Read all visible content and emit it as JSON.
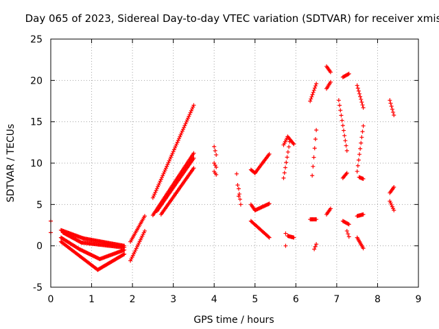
{
  "chart_data": {
    "type": "scatter",
    "title": "Day 065 of 2023, Sidereal Day-to-day VTEC variation (SDTVAR) for receiver xmis",
    "xlabel": "GPS time / hours",
    "ylabel": "SDTVAR / TECUs",
    "xlim": [
      0,
      9
    ],
    "ylim": [
      -5,
      25
    ],
    "xticks": [
      "0",
      "1",
      "2",
      "3",
      "4",
      "5",
      "6",
      "7",
      "8",
      "9"
    ],
    "yticks": [
      "-5",
      "0",
      "5",
      "10",
      "15",
      "20",
      "25"
    ],
    "grid": true,
    "marker": "+",
    "color": "#ff0000",
    "segments": [
      {
        "x0": 0.0,
        "x1": 0.0,
        "y0": 3.0,
        "y1": 1.6
      },
      {
        "x0": 0.25,
        "x1": 0.8,
        "y0": 1.9,
        "y1": 0.9
      },
      {
        "x0": 0.8,
        "x1": 1.8,
        "y0": 0.9,
        "y1": 0.0
      },
      {
        "x0": 0.25,
        "x1": 0.7,
        "y0": 1.0,
        "y1": -0.4
      },
      {
        "x0": 0.7,
        "x1": 1.2,
        "y0": -0.4,
        "y1": -1.6
      },
      {
        "x0": 1.2,
        "x1": 1.8,
        "y0": -1.6,
        "y1": -0.5
      },
      {
        "x0": 0.25,
        "x1": 0.7,
        "y0": 0.5,
        "y1": -1.2
      },
      {
        "x0": 0.7,
        "x1": 1.15,
        "y0": -1.2,
        "y1": -2.9
      },
      {
        "x0": 1.15,
        "x1": 1.8,
        "y0": -2.9,
        "y1": -1.0
      },
      {
        "x0": 0.3,
        "x1": 0.75,
        "y0": 1.6,
        "y1": 0.4
      },
      {
        "x0": 0.75,
        "x1": 1.8,
        "y0": 0.4,
        "y1": -0.2
      },
      {
        "x0": 1.95,
        "x1": 2.3,
        "y0": 0.5,
        "y1": 3.6
      },
      {
        "x0": 1.95,
        "x1": 2.3,
        "y0": -1.8,
        "y1": 1.8
      },
      {
        "x0": 2.5,
        "x1": 3.5,
        "y0": 5.8,
        "y1": 17.0
      },
      {
        "x0": 2.5,
        "x1": 3.5,
        "y0": 3.7,
        "y1": 11.2
      },
      {
        "x0": 2.6,
        "x1": 3.5,
        "y0": 4.2,
        "y1": 10.6
      },
      {
        "x0": 2.7,
        "x1": 3.5,
        "y0": 3.8,
        "y1": 9.4
      },
      {
        "x0": 4.0,
        "x1": 4.05,
        "y0": 12.0,
        "y1": 11.0
      },
      {
        "x0": 4.0,
        "x1": 4.05,
        "y0": 10.0,
        "y1": 9.5
      },
      {
        "x0": 4.0,
        "x1": 4.05,
        "y0": 9.0,
        "y1": 8.6
      },
      {
        "x0": 4.55,
        "x1": 4.6,
        "y0": 8.7,
        "y1": 6.0
      },
      {
        "x0": 4.6,
        "x1": 4.65,
        "y0": 6.9,
        "y1": 5.0
      },
      {
        "x0": 4.9,
        "x1": 5.0,
        "y0": 9.2,
        "y1": 8.8
      },
      {
        "x0": 5.0,
        "x1": 5.35,
        "y0": 8.8,
        "y1": 11.1
      },
      {
        "x0": 4.9,
        "x1": 5.0,
        "y0": 5.0,
        "y1": 4.3
      },
      {
        "x0": 5.0,
        "x1": 5.35,
        "y0": 4.3,
        "y1": 5.1
      },
      {
        "x0": 4.9,
        "x1": 5.35,
        "y0": 3.0,
        "y1": 1.0
      },
      {
        "x0": 5.7,
        "x1": 5.85,
        "y0": 8.2,
        "y1": 12.6
      },
      {
        "x0": 5.7,
        "x1": 5.8,
        "y0": 12.2,
        "y1": 13.2
      },
      {
        "x0": 5.8,
        "x1": 5.95,
        "y0": 13.2,
        "y1": 12.3
      },
      {
        "x0": 5.75,
        "x1": 5.75,
        "y0": 0.0,
        "y1": 1.5
      },
      {
        "x0": 5.8,
        "x1": 5.95,
        "y0": 1.2,
        "y1": 1.0
      },
      {
        "x0": 6.35,
        "x1": 6.5,
        "y0": 17.5,
        "y1": 19.6
      },
      {
        "x0": 6.4,
        "x1": 6.5,
        "y0": 8.5,
        "y1": 14.0
      },
      {
        "x0": 6.35,
        "x1": 6.5,
        "y0": 3.2,
        "y1": 3.2
      },
      {
        "x0": 6.45,
        "x1": 6.5,
        "y0": -0.4,
        "y1": 0.2
      },
      {
        "x0": 6.75,
        "x1": 6.85,
        "y0": 21.7,
        "y1": 21.0
      },
      {
        "x0": 6.75,
        "x1": 6.85,
        "y0": 19.0,
        "y1": 19.8
      },
      {
        "x0": 6.75,
        "x1": 6.85,
        "y0": 3.8,
        "y1": 4.5
      },
      {
        "x0": 7.05,
        "x1": 7.25,
        "y0": 17.6,
        "y1": 11.5
      },
      {
        "x0": 7.15,
        "x1": 7.3,
        "y0": 20.4,
        "y1": 20.8
      },
      {
        "x0": 7.15,
        "x1": 7.25,
        "y0": 8.2,
        "y1": 8.8
      },
      {
        "x0": 7.15,
        "x1": 7.3,
        "y0": 3.0,
        "y1": 2.6
      },
      {
        "x0": 7.25,
        "x1": 7.3,
        "y0": 1.8,
        "y1": 1.1
      },
      {
        "x0": 7.5,
        "x1": 7.65,
        "y0": 19.4,
        "y1": 16.7
      },
      {
        "x0": 7.5,
        "x1": 7.65,
        "y0": 9.0,
        "y1": 14.5
      },
      {
        "x0": 7.55,
        "x1": 7.65,
        "y0": 8.3,
        "y1": 8.1
      },
      {
        "x0": 7.5,
        "x1": 7.65,
        "y0": 3.6,
        "y1": 3.8
      },
      {
        "x0": 7.5,
        "x1": 7.65,
        "y0": 1.0,
        "y1": -0.3
      },
      {
        "x0": 8.3,
        "x1": 8.4,
        "y0": 17.6,
        "y1": 15.8
      },
      {
        "x0": 8.3,
        "x1": 8.4,
        "y0": 6.4,
        "y1": 7.1
      },
      {
        "x0": 8.3,
        "x1": 8.4,
        "y0": 5.4,
        "y1": 4.3
      }
    ]
  }
}
